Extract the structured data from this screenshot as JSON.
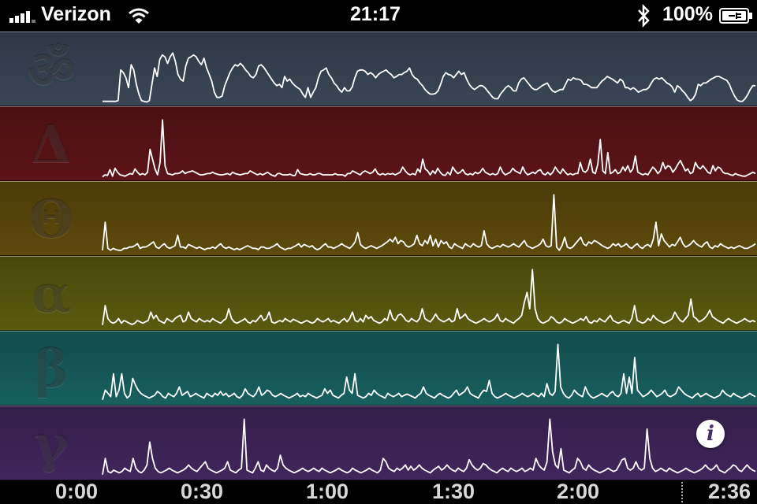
{
  "status": {
    "carrier": "Verizon",
    "time": "21:17",
    "battery": "100%",
    "signal_bars": 4
  },
  "bands": [
    {
      "id": "meditation",
      "symbol": "ॐ",
      "color": "#3a4656",
      "series": [
        4,
        4,
        4,
        4,
        4,
        4,
        5,
        52,
        48,
        40,
        25,
        60,
        52,
        30,
        15,
        5,
        4,
        3,
        5,
        30,
        55,
        42,
        68,
        75,
        72,
        62,
        72,
        78,
        65,
        45,
        38,
        35,
        58,
        70,
        72,
        75,
        72,
        65,
        60,
        70,
        55,
        45,
        35,
        18,
        10,
        10,
        12,
        28,
        38,
        48,
        55,
        60,
        58,
        62,
        58,
        52,
        48,
        42,
        40,
        45,
        58,
        60,
        56,
        50,
        44,
        38,
        32,
        28,
        30,
        25,
        42,
        35,
        38,
        32,
        28,
        25,
        22,
        15,
        10,
        25,
        10,
        18,
        25,
        40,
        50,
        52,
        55,
        45,
        40,
        32,
        28,
        22,
        18,
        25,
        20,
        20,
        26,
        40,
        50,
        52,
        52,
        50,
        45,
        48,
        45,
        40,
        45,
        48,
        50,
        52,
        48,
        45,
        40,
        42,
        45,
        45,
        48,
        50,
        55,
        45,
        40,
        38,
        32,
        28,
        22,
        18,
        15,
        15,
        16,
        20,
        30,
        42,
        48,
        45,
        44,
        40,
        45,
        50,
        45,
        48,
        38,
        30,
        25,
        22,
        25,
        28,
        28,
        25,
        20,
        15,
        10,
        8,
        8,
        15,
        20,
        25,
        28,
        25,
        20,
        20,
        32,
        38,
        40,
        35,
        30,
        25,
        22,
        22,
        25,
        28,
        30,
        32,
        25,
        20,
        18,
        20,
        22,
        22,
        30,
        38,
        36,
        40,
        38,
        38,
        36,
        30,
        30,
        28,
        25,
        25,
        25,
        30,
        35,
        38,
        42,
        40,
        38,
        35,
        32,
        38,
        35,
        25,
        25,
        22,
        25,
        22,
        18,
        20,
        22,
        22,
        25,
        32,
        38,
        40,
        38,
        40,
        36,
        32,
        30,
        26,
        18,
        28,
        25,
        20,
        16,
        10,
        5,
        8,
        15,
        30,
        28,
        32,
        32,
        35,
        38,
        40,
        42,
        42,
        40,
        38,
        36,
        30,
        20,
        12,
        6,
        4,
        4,
        8,
        14,
        22,
        28,
        28
      ]
    },
    {
      "id": "delta",
      "symbol": "Δ",
      "color": "#5c1418",
      "series": [
        3,
        6,
        5,
        14,
        4,
        16,
        10,
        6,
        5,
        4,
        6,
        8,
        7,
        15,
        10,
        6,
        8,
        6,
        10,
        45,
        30,
        15,
        6,
        25,
        90,
        20,
        8,
        7,
        6,
        8,
        8,
        9,
        12,
        8,
        10,
        11,
        12,
        10,
        8,
        6,
        6,
        7,
        8,
        8,
        10,
        8,
        7,
        6,
        6,
        7,
        8,
        6,
        10,
        8,
        7,
        6,
        7,
        8,
        8,
        12,
        10,
        8,
        6,
        8,
        6,
        8,
        10,
        7,
        5,
        4,
        8,
        8,
        6,
        6,
        6,
        7,
        5,
        5,
        14,
        8,
        7,
        6,
        6,
        8,
        6,
        6,
        8,
        8,
        6,
        6,
        6,
        6,
        6,
        8,
        6,
        6,
        6,
        4,
        8,
        8,
        12,
        10,
        8,
        6,
        10,
        12,
        10,
        8,
        10,
        15,
        8,
        6,
        8,
        6,
        8,
        7,
        8,
        6,
        8,
        10,
        18,
        12,
        8,
        6,
        8,
        6,
        15,
        10,
        30,
        15,
        12,
        6,
        12,
        8,
        16,
        10,
        6,
        5,
        10,
        6,
        18,
        12,
        8,
        10,
        14,
        8,
        6,
        8,
        6,
        10,
        8,
        10,
        16,
        10,
        8,
        6,
        8,
        6,
        8,
        18,
        10,
        6,
        8,
        10,
        16,
        12,
        10,
        8,
        18,
        10,
        6,
        8,
        10,
        8,
        12,
        14,
        8,
        6,
        10,
        6,
        10,
        18,
        12,
        8,
        15,
        10,
        6,
        8,
        6,
        8,
        8,
        25,
        12,
        10,
        14,
        30,
        10,
        8,
        22,
        60,
        12,
        8,
        40,
        8,
        10,
        14,
        8,
        10,
        18,
        12,
        20,
        10,
        15,
        35,
        10,
        8,
        6,
        8,
        6,
        12,
        18,
        14,
        8,
        12,
        25,
        15,
        20,
        18,
        10,
        15,
        22,
        28,
        20,
        12,
        15,
        8,
        10,
        25,
        18,
        15,
        20,
        15,
        10,
        8,
        20,
        12,
        18,
        16,
        10,
        8,
        8,
        6,
        5,
        8,
        6,
        5,
        4,
        4,
        6,
        8,
        10,
        8
      ]
    },
    {
      "id": "theta",
      "symbol": "Θ",
      "color": "#5e4a0c",
      "series": [
        5,
        48,
        8,
        5,
        8,
        6,
        5,
        5,
        8,
        8,
        10,
        10,
        12,
        15,
        8,
        10,
        10,
        12,
        15,
        18,
        10,
        8,
        12,
        15,
        10,
        8,
        10,
        12,
        28,
        10,
        10,
        8,
        14,
        12,
        10,
        8,
        10,
        8,
        6,
        8,
        8,
        10,
        8,
        12,
        15,
        10,
        8,
        10,
        8,
        6,
        8,
        6,
        8,
        10,
        12,
        10,
        8,
        8,
        6,
        10,
        10,
        8,
        8,
        10,
        12,
        15,
        10,
        8,
        6,
        8,
        8,
        10,
        12,
        15,
        10,
        14,
        12,
        10,
        12,
        8,
        6,
        8,
        12,
        15,
        10,
        10,
        8,
        10,
        12,
        15,
        12,
        10,
        8,
        12,
        18,
        32,
        14,
        10,
        8,
        10,
        12,
        10,
        8,
        10,
        12,
        15,
        18,
        22,
        18,
        25,
        15,
        20,
        18,
        12,
        10,
        12,
        15,
        28,
        15,
        12,
        20,
        15,
        28,
        12,
        22,
        10,
        20,
        15,
        18,
        10,
        8,
        15,
        12,
        10,
        8,
        15,
        12,
        10,
        15,
        12,
        10,
        12,
        35,
        15,
        10,
        8,
        10,
        12,
        10,
        14,
        12,
        10,
        12,
        15,
        12,
        10,
        15,
        20,
        12,
        10,
        8,
        10,
        12,
        15,
        22,
        12,
        10,
        12,
        90,
        10,
        5,
        12,
        25,
        10,
        8,
        10,
        15,
        20,
        25,
        15,
        12,
        18,
        15,
        20,
        18,
        15,
        12,
        10,
        8,
        10,
        15,
        12,
        15,
        10,
        12,
        15,
        10,
        8,
        12,
        15,
        10,
        8,
        12,
        14,
        10,
        22,
        48,
        12,
        30,
        20,
        15,
        10,
        14,
        12,
        18,
        25,
        15,
        10,
        12,
        15,
        20,
        15,
        12,
        10,
        15,
        18,
        10,
        8,
        12,
        10,
        15,
        12,
        10,
        8,
        10,
        8,
        10,
        12,
        10,
        8,
        8,
        10,
        12,
        15
      ]
    },
    {
      "id": "alpha",
      "symbol": "α",
      "color": "#5a5a10",
      "series": [
        5,
        35,
        15,
        10,
        8,
        10,
        15,
        8,
        12,
        10,
        8,
        6,
        8,
        12,
        10,
        8,
        10,
        12,
        25,
        15,
        20,
        12,
        10,
        8,
        15,
        12,
        10,
        15,
        18,
        20,
        10,
        12,
        25,
        15,
        12,
        10,
        15,
        12,
        10,
        12,
        10,
        15,
        12,
        10,
        8,
        12,
        15,
        30,
        15,
        10,
        8,
        10,
        12,
        15,
        10,
        8,
        12,
        10,
        15,
        20,
        12,
        15,
        25,
        10,
        8,
        10,
        12,
        10,
        15,
        12,
        10,
        14,
        12,
        10,
        8,
        10,
        12,
        10,
        8,
        10,
        15,
        12,
        10,
        12,
        15,
        10,
        12,
        10,
        8,
        12,
        15,
        10,
        15,
        25,
        12,
        10,
        15,
        10,
        20,
        15,
        18,
        12,
        10,
        8,
        10,
        15,
        12,
        28,
        15,
        12,
        20,
        22,
        18,
        12,
        10,
        15,
        12,
        10,
        15,
        30,
        15,
        12,
        10,
        15,
        22,
        15,
        12,
        10,
        12,
        15,
        10,
        12,
        30,
        15,
        18,
        22,
        15,
        12,
        10,
        8,
        10,
        12,
        15,
        12,
        10,
        12,
        15,
        22,
        12,
        10,
        15,
        12,
        10,
        8,
        12,
        15,
        20,
        40,
        55,
        30,
        90,
        30,
        15,
        10,
        8,
        10,
        12,
        18,
        15,
        10,
        8,
        10,
        15,
        12,
        10,
        8,
        10,
        12,
        15,
        12,
        18,
        10,
        8,
        12,
        10,
        15,
        12,
        10,
        15,
        20,
        12,
        10,
        8,
        10,
        12,
        10,
        8,
        15,
        35,
        12,
        10,
        8,
        10,
        15,
        12,
        20,
        15,
        12,
        10,
        8,
        10,
        12,
        15,
        25,
        18,
        12,
        10,
        15,
        20,
        45,
        18,
        15,
        10,
        12,
        15,
        20,
        28,
        18,
        15,
        12,
        10,
        8,
        12,
        15,
        12,
        10,
        8,
        10,
        12,
        15,
        12,
        10,
        12,
        10
      ]
    },
    {
      "id": "beta",
      "symbol": "β",
      "color": "#185f5f",
      "series": [
        5,
        20,
        15,
        10,
        45,
        10,
        20,
        45,
        15,
        8,
        12,
        38,
        28,
        20,
        15,
        12,
        10,
        8,
        10,
        12,
        18,
        15,
        10,
        8,
        15,
        12,
        10,
        15,
        25,
        12,
        15,
        18,
        10,
        12,
        15,
        12,
        10,
        8,
        15,
        12,
        10,
        15,
        12,
        18,
        12,
        15,
        10,
        12,
        15,
        10,
        8,
        12,
        22,
        15,
        12,
        10,
        15,
        25,
        12,
        15,
        20,
        18,
        12,
        10,
        12,
        15,
        12,
        10,
        8,
        10,
        12,
        15,
        10,
        12,
        10,
        15,
        12,
        10,
        8,
        10,
        12,
        22,
        15,
        20,
        12,
        10,
        8,
        12,
        15,
        40,
        20,
        15,
        45,
        12,
        10,
        8,
        10,
        15,
        12,
        20,
        15,
        12,
        10,
        8,
        15,
        12,
        10,
        12,
        15,
        10,
        12,
        14,
        12,
        10,
        8,
        12,
        15,
        25,
        15,
        12,
        10,
        8,
        12,
        15,
        12,
        10,
        8,
        10,
        15,
        20,
        12,
        15,
        18,
        25,
        15,
        12,
        10,
        8,
        15,
        20,
        18,
        35,
        15,
        10,
        8,
        10,
        12,
        15,
        12,
        10,
        8,
        10,
        12,
        15,
        12,
        10,
        12,
        15,
        12,
        10,
        15,
        10,
        30,
        15,
        12,
        18,
        90,
        25,
        15,
        10,
        8,
        12,
        20,
        15,
        12,
        10,
        25,
        15,
        10,
        8,
        10,
        12,
        15,
        12,
        10,
        15,
        18,
        12,
        10,
        15,
        45,
        15,
        40,
        15,
        70,
        20,
        15,
        10,
        12,
        15,
        20,
        15,
        10,
        12,
        15,
        20,
        12,
        10,
        12,
        15,
        25,
        20,
        15,
        12,
        10,
        8,
        12,
        15,
        10,
        12,
        15,
        12,
        10,
        8,
        10,
        12,
        20,
        15,
        12,
        10,
        15,
        12,
        10,
        8,
        10,
        12,
        15,
        12,
        10
      ]
    },
    {
      "id": "gamma",
      "symbol": "γ",
      "color": "#40265c",
      "series": [
        5,
        30,
        10,
        8,
        12,
        10,
        8,
        10,
        15,
        12,
        10,
        30,
        15,
        10,
        8,
        12,
        20,
        55,
        30,
        15,
        10,
        8,
        10,
        12,
        15,
        12,
        10,
        8,
        10,
        12,
        15,
        20,
        15,
        12,
        10,
        15,
        20,
        25,
        15,
        12,
        10,
        8,
        10,
        12,
        15,
        25,
        12,
        10,
        8,
        12,
        15,
        90,
        12,
        10,
        8,
        15,
        25,
        12,
        10,
        20,
        15,
        12,
        10,
        15,
        35,
        20,
        15,
        12,
        10,
        8,
        10,
        12,
        15,
        12,
        10,
        12,
        15,
        12,
        10,
        15,
        12,
        10,
        8,
        10,
        12,
        15,
        12,
        10,
        8,
        10,
        15,
        12,
        10,
        8,
        10,
        12,
        15,
        12,
        10,
        8,
        12,
        30,
        25,
        15,
        12,
        10,
        15,
        12,
        15,
        20,
        12,
        18,
        12,
        15,
        20,
        15,
        12,
        10,
        8,
        12,
        15,
        18,
        12,
        15,
        20,
        15,
        12,
        10,
        15,
        12,
        10,
        15,
        28,
        20,
        15,
        12,
        15,
        22,
        20,
        15,
        12,
        10,
        8,
        12,
        15,
        12,
        10,
        15,
        12,
        10,
        12,
        15,
        10,
        12,
        15,
        12,
        30,
        20,
        15,
        12,
        25,
        90,
        40,
        20,
        15,
        45,
        12,
        10,
        8,
        12,
        15,
        30,
        25,
        15,
        12,
        20,
        15,
        12,
        10,
        8,
        10,
        12,
        15,
        12,
        10,
        12,
        20,
        28,
        30,
        15,
        12,
        15,
        25,
        15,
        12,
        15,
        75,
        30,
        15,
        10,
        12,
        15,
        12,
        10,
        15,
        12,
        10,
        8,
        10,
        12,
        15,
        12,
        10,
        8,
        10,
        12,
        15,
        20,
        15,
        12,
        15,
        20,
        12,
        10,
        8,
        12,
        15,
        20,
        18,
        12,
        10,
        15,
        20,
        15,
        12,
        10
      ]
    }
  ],
  "time_axis": {
    "labels": [
      "0:00",
      "0:30",
      "1:00",
      "1:30",
      "2:00",
      "2:36"
    ]
  },
  "info_button": {
    "glyph": "i"
  }
}
